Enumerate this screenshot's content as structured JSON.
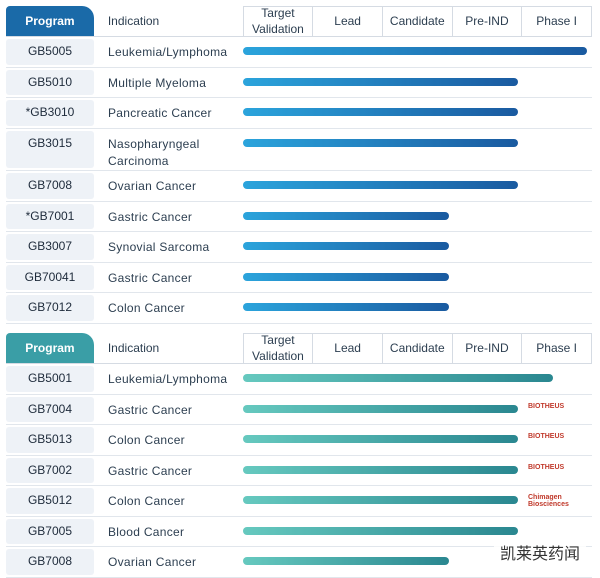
{
  "panels": [
    {
      "header": {
        "program": "Program",
        "indication": "Indication",
        "stages": [
          "Target Validation",
          "Lead",
          "Candidate",
          "Pre-IND",
          "Phase I"
        ]
      },
      "rows": [
        {
          "program": "GB5005",
          "indication": "Leukemia/Lymphoma",
          "progress": 5
        },
        {
          "program": "GB5010",
          "indication": "Multiple Myeloma",
          "progress": 4
        },
        {
          "program": "*GB3010",
          "indication": "Pancreatic Cancer",
          "progress": 4
        },
        {
          "program": "GB3015",
          "indication": "Nasopharyngeal Carcinoma",
          "progress": 4
        },
        {
          "program": "GB7008",
          "indication": "Ovarian Cancer",
          "progress": 4
        },
        {
          "program": "*GB7001",
          "indication": "Gastric Cancer",
          "progress": 3
        },
        {
          "program": "GB3007",
          "indication": "Synovial Sarcoma",
          "progress": 3
        },
        {
          "program": "GB70041",
          "indication": "Gastric Cancer",
          "progress": 3
        },
        {
          "program": "GB7012",
          "indication": "Colon Cancer",
          "progress": 3
        }
      ]
    },
    {
      "header": {
        "program": "Program",
        "indication": "Indication",
        "stages": [
          "Target Validation",
          "Lead",
          "Candidate",
          "Pre-IND",
          "Phase I"
        ]
      },
      "rows": [
        {
          "program": "GB5001",
          "indication": "Leukemia/Lymphoma",
          "progress": 4.5
        },
        {
          "program": "GB7004",
          "indication": "Gastric Cancer",
          "progress": 4,
          "partner": "BIOTHEUS"
        },
        {
          "program": "GB5013",
          "indication": "Colon Cancer",
          "progress": 4,
          "partner": "BIOTHEUS"
        },
        {
          "program": "GB7002",
          "indication": "Gastric Cancer",
          "progress": 4,
          "partner": "BIOTHEUS"
        },
        {
          "program": "GB5012",
          "indication": "Colon Cancer",
          "progress": 4,
          "partner": "Chimagen Biosciences"
        },
        {
          "program": "GB7005",
          "indication": "Blood Cancer",
          "progress": 4
        },
        {
          "program": "GB7008",
          "indication": "Ovarian Cancer",
          "progress": 3
        }
      ]
    }
  ],
  "watermark": "凯莱英药闻"
}
